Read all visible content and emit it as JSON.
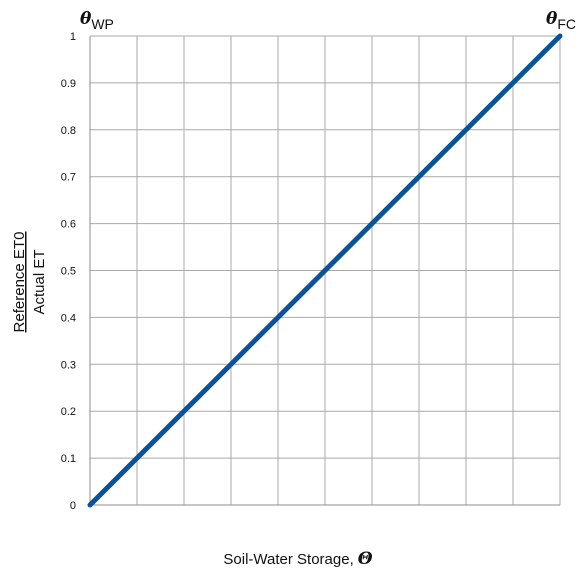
{
  "chart_data": {
    "type": "line",
    "xlabel": "Soil-Water Storage,",
    "xlabel_symbol": "Θ",
    "ylabel_numerator": "Reference ET0",
    "ylabel_denominator": "Actual ET",
    "x_start_label": {
      "symbol": "θ",
      "subscript": "WP"
    },
    "x_end_label": {
      "symbol": "θ",
      "subscript": "FC"
    },
    "x_tick_labels": [],
    "y_ticks": [
      0,
      0.1,
      0.2,
      0.3,
      0.4,
      0.5,
      0.6,
      0.7,
      0.8,
      0.9,
      1
    ],
    "y_tick_labels": [
      "0",
      "0.1",
      "0.2",
      "0.3",
      "0.4",
      "0.5",
      "0.6",
      "0.7",
      "0.8",
      "0.9",
      "1"
    ],
    "xlim": [
      0,
      1
    ],
    "ylim": [
      0,
      1
    ],
    "x_grid_divisions": 10,
    "grid": true,
    "series": [
      {
        "x": [
          0,
          1
        ],
        "values": [
          0,
          1
        ],
        "color": "#0b5394"
      }
    ]
  }
}
